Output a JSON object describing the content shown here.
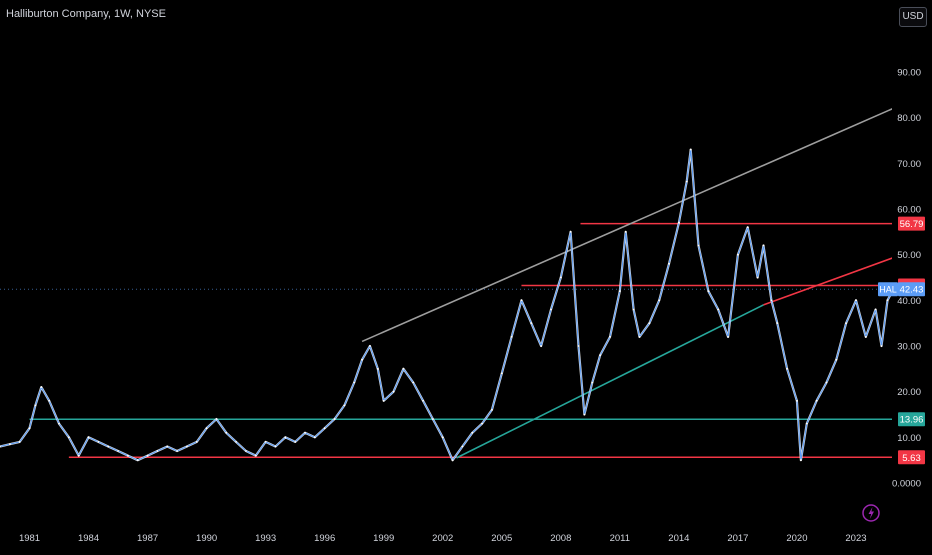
{
  "header": {
    "title": "Halliburton Company, 1W, NYSE",
    "currency_button": "USD"
  },
  "chart_data": {
    "type": "line",
    "title": "Halliburton Company, 1W, NYSE",
    "xlabel": "",
    "ylabel": "",
    "xlim": [
      1979.5,
      2026.6
    ],
    "ylim": [
      0,
      100
    ],
    "grid": false,
    "x_tick_labels": [
      "1981",
      "1984",
      "1987",
      "1990",
      "1993",
      "1996",
      "1999",
      "2002",
      "2005",
      "2008",
      "2011",
      "2014",
      "2017",
      "2020",
      "2023"
    ],
    "x_tick_values": [
      1981,
      1984,
      1987,
      1990,
      1993,
      1996,
      1999,
      2002,
      2005,
      2008,
      2011,
      2014,
      2017,
      2020,
      2023
    ],
    "y_tick_labels": [
      "0.0000",
      "10.00",
      "20.00",
      "30.00",
      "40.00",
      "50.00",
      "60.00",
      "70.00",
      "80.00",
      "90.00"
    ],
    "y_tick_values": [
      0,
      10,
      20,
      30,
      40,
      50,
      60,
      70,
      80,
      90
    ],
    "series": [
      {
        "ticker": "HAL",
        "color": "#5b9cf6",
        "last_value": "42.43",
        "x": [
          1979.5,
          1980.0,
          1980.5,
          1981.0,
          1981.3,
          1981.6,
          1982.0,
          1982.5,
          1983.0,
          1983.5,
          1984.0,
          1984.5,
          1985.0,
          1985.5,
          1986.0,
          1986.5,
          1987.0,
          1987.5,
          1988.0,
          1988.5,
          1989.0,
          1989.5,
          1990.0,
          1990.5,
          1991.0,
          1991.5,
          1992.0,
          1992.5,
          1993.0,
          1993.5,
          1994.0,
          1994.5,
          1995.0,
          1995.5,
          1996.0,
          1996.5,
          1997.0,
          1997.5,
          1997.9,
          1998.3,
          1998.7,
          1999.0,
          1999.5,
          2000.0,
          2000.5,
          2001.0,
          2001.5,
          2002.0,
          2002.5,
          2003.0,
          2003.5,
          2004.0,
          2004.5,
          2005.0,
          2005.5,
          2006.0,
          2006.5,
          2007.0,
          2007.5,
          2008.0,
          2008.5,
          2008.9,
          2009.2,
          2009.6,
          2010.0,
          2010.5,
          2011.0,
          2011.3,
          2011.7,
          2012.0,
          2012.5,
          2013.0,
          2013.5,
          2014.0,
          2014.4,
          2014.6,
          2015.0,
          2015.5,
          2016.0,
          2016.5,
          2017.0,
          2017.5,
          2018.0,
          2018.3,
          2018.7,
          2019.0,
          2019.5,
          2020.0,
          2020.2,
          2020.5,
          2021.0,
          2021.5,
          2022.0,
          2022.5,
          2023.0,
          2023.5,
          2024.0,
          2024.3,
          2024.6,
          2024.9
        ],
        "values": [
          8,
          8.5,
          9,
          12,
          17,
          21,
          18,
          13,
          10,
          6,
          10,
          9,
          8,
          7,
          6,
          5,
          6,
          7,
          8,
          7,
          8,
          9,
          12,
          14,
          11,
          9,
          7,
          6,
          9,
          8,
          10,
          9,
          11,
          10,
          12,
          14,
          17,
          22,
          27,
          30,
          25,
          18,
          20,
          25,
          22,
          18,
          14,
          10,
          5,
          8,
          11,
          13,
          16,
          24,
          32,
          40,
          35,
          30,
          38,
          45,
          55,
          30,
          15,
          22,
          28,
          32,
          42,
          55,
          38,
          32,
          35,
          40,
          48,
          57,
          66,
          73,
          52,
          42,
          38,
          32,
          50,
          56,
          45,
          52,
          40,
          35,
          25,
          18,
          5,
          13,
          18,
          22,
          27,
          35,
          40,
          32,
          38,
          30,
          40,
          42.43
        ]
      }
    ],
    "annotations": {
      "horizontal_lines": [
        {
          "y": 56.79,
          "color": "#f23645",
          "label": "56.79",
          "x_start": 2009.0
        },
        {
          "y": 43.26,
          "color": "#f23645",
          "label": "43.26",
          "x_start": 2006.0
        },
        {
          "y": 13.96,
          "color": "#26a69a",
          "label": "13.96",
          "x_start": 1981.0
        },
        {
          "y": 5.63,
          "color": "#f23645",
          "label": "5.63",
          "x_start": 1983.0
        }
      ],
      "trend_lines": [
        {
          "x1": 1997.9,
          "y1": 31,
          "x2": 2026.2,
          "y2": 84.5,
          "color": "#9e9e9e"
        },
        {
          "x1": 2002.7,
          "y1": 5.5,
          "x2": 2018.3,
          "y2": 39,
          "color": "#26a69a"
        },
        {
          "x1": 2018.3,
          "y1": 39,
          "x2": 2026.6,
          "y2": 52,
          "color": "#f23645"
        }
      ],
      "last_price_line": {
        "y": 42.43,
        "color": "#5b9cf6"
      }
    }
  }
}
